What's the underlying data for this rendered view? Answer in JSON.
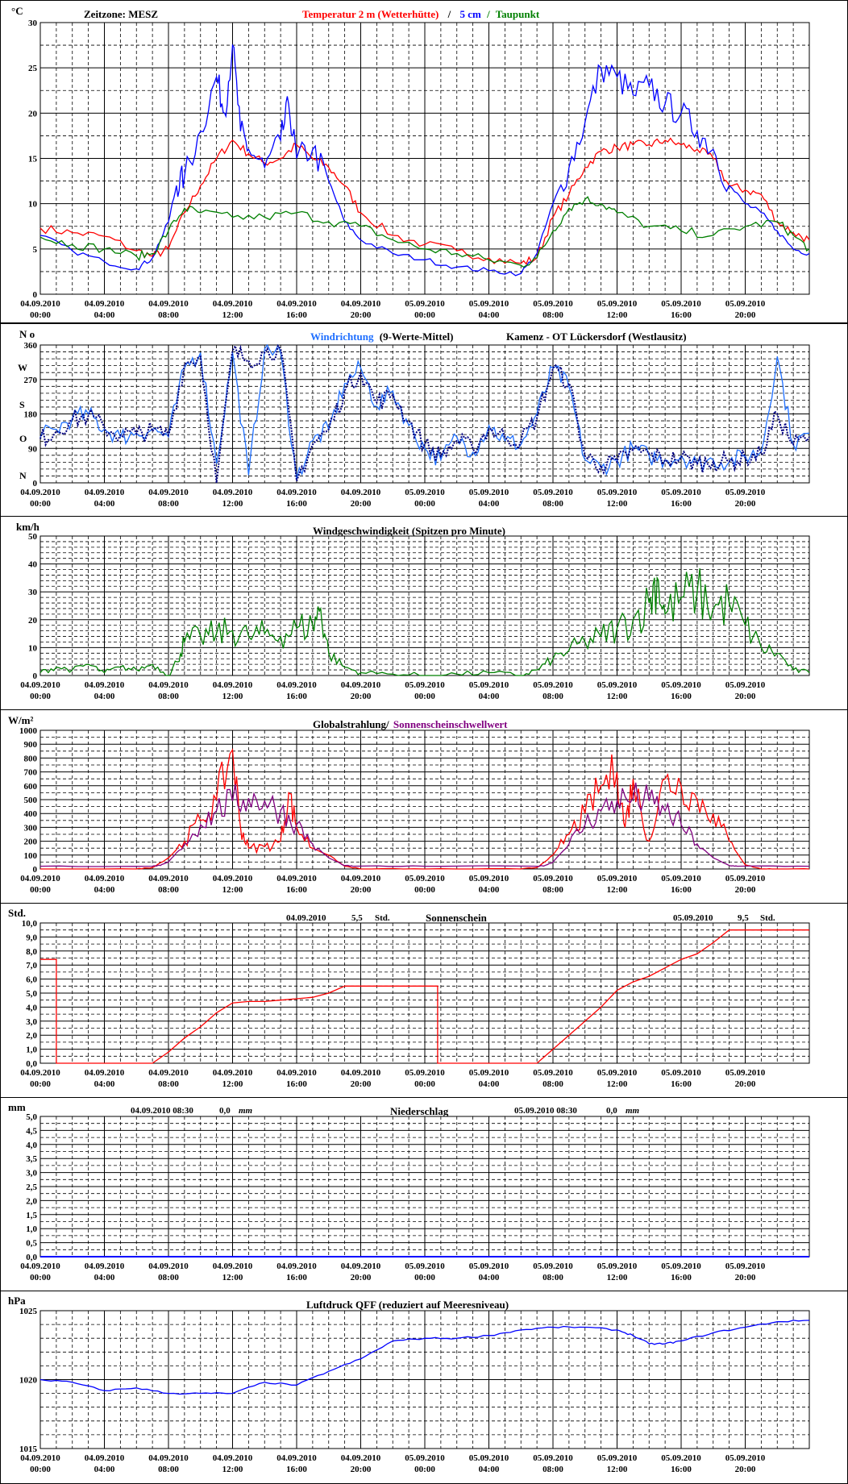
{
  "x_ticks": [
    {
      "date": "04.09.2010",
      "time": "00:00"
    },
    {
      "date": "04.09.2010",
      "time": "04:00"
    },
    {
      "date": "04.09.2010",
      "time": "08:00"
    },
    {
      "date": "04.09.2010",
      "time": "12:00"
    },
    {
      "date": "04.09.2010",
      "time": "16:00"
    },
    {
      "date": "04.09.2010",
      "time": "20:00"
    },
    {
      "date": "05.09.2010",
      "time": "00:00"
    },
    {
      "date": "05.09.2010",
      "time": "04:00"
    },
    {
      "date": "05.09.2010",
      "time": "08:00"
    },
    {
      "date": "05.09.2010",
      "time": "12:00"
    },
    {
      "date": "05.09.2010",
      "time": "16:00"
    },
    {
      "date": "05.09.2010",
      "time": "20:00"
    }
  ],
  "colors": {
    "red": "#ff0000",
    "blue": "#0000ff",
    "green": "#008000",
    "light_blue": "#1f6fff",
    "navy": "#000080",
    "purple": "#800080",
    "black": "#000000"
  },
  "chart_data": [
    {
      "id": "temperature",
      "type": "line",
      "unit": "°C",
      "timezone": "Zeitzone: MESZ",
      "title_parts": [
        "Temperatur 2 m (Wetterhütte)",
        "/",
        "5 cm",
        "/",
        "Taupunkt"
      ],
      "ylim": [
        0,
        30
      ],
      "y_ticks": [
        "0",
        "5",
        "10",
        "15",
        "20",
        "25",
        "30"
      ],
      "series": [
        {
          "name": "Temperatur 2 m (Wetterhütte)",
          "color": "#ff0000",
          "x_hours": [
            0,
            2,
            4,
            6,
            7,
            8,
            9,
            10,
            11,
            12,
            13,
            14,
            15,
            16,
            17,
            18,
            19,
            20,
            22,
            24,
            26,
            28,
            30,
            31,
            32,
            33,
            34,
            35,
            36,
            37,
            38,
            39,
            40,
            41,
            42,
            43,
            44,
            45,
            46,
            47,
            48
          ],
          "values": [
            7.3,
            6.8,
            6.4,
            4.8,
            4.2,
            5,
            9,
            12,
            15,
            17,
            15.5,
            14.5,
            15,
            16.5,
            15,
            14,
            12,
            9,
            6.5,
            5.5,
            4.8,
            4.0,
            3.4,
            4.0,
            8.5,
            11,
            14,
            15.8,
            16.2,
            16.5,
            16.5,
            17,
            16.5,
            16,
            15,
            12,
            11.5,
            11,
            8,
            6.8,
            6
          ]
        },
        {
          "name": "5 cm",
          "color": "#0000ff",
          "x_hours": [
            0,
            2,
            4,
            6,
            7,
            8,
            8.5,
            9,
            10,
            11,
            11.5,
            12,
            12.5,
            13,
            14,
            15,
            15.5,
            16,
            17,
            18,
            19,
            20,
            22,
            24,
            26,
            28,
            30,
            31,
            32,
            33,
            34,
            35,
            36,
            37,
            38,
            39,
            40,
            41,
            42,
            43,
            44,
            45,
            46,
            47,
            48
          ],
          "values": [
            6.5,
            4.8,
            3.6,
            2.8,
            4.0,
            8,
            12,
            13,
            18,
            24,
            20,
            27.5,
            18,
            16,
            14,
            17,
            21,
            15,
            16,
            12.5,
            8,
            6,
            4.5,
            3.8,
            3.0,
            2.6,
            2.3,
            4.5,
            10,
            14,
            19,
            25,
            24,
            22,
            23,
            21,
            20,
            18,
            16,
            12,
            10,
            9,
            7,
            5,
            4.5
          ]
        },
        {
          "name": "Taupunkt",
          "color": "#008000",
          "x_hours": [
            0,
            2,
            4,
            6,
            7,
            8,
            9,
            10,
            12,
            14,
            16,
            18,
            20,
            22,
            24,
            26,
            28,
            30,
            31,
            32,
            33,
            34,
            35,
            36,
            38,
            40,
            42,
            44,
            46,
            47,
            48
          ],
          "values": [
            6.3,
            5.5,
            5,
            4.2,
            4.5,
            7,
            9.5,
            9,
            8.5,
            8.5,
            9,
            8,
            7.5,
            6,
            5,
            4.5,
            3.8,
            3.2,
            4,
            7,
            9.5,
            10.5,
            10,
            9,
            7.5,
            7,
            6.5,
            7.5,
            8,
            6.5,
            5
          ]
        }
      ]
    },
    {
      "id": "wind_direction",
      "type": "line",
      "unit": "N o",
      "title": "Windrichtung",
      "title_suffix": "(9-Werte-Mittel)",
      "station": "Kamenz - OT Lückersdorf (Westlausitz)",
      "ylim": [
        0,
        360
      ],
      "y_ticks": [
        "0",
        "90",
        "180",
        "270",
        "360"
      ],
      "compass": [
        "N",
        "O",
        "S",
        "W"
      ],
      "series": [
        {
          "name": "Windrichtung",
          "color": "#1f6fff",
          "x_hours": [
            0,
            1,
            2,
            3,
            4,
            5,
            6,
            7,
            8,
            9,
            10,
            11,
            12,
            13,
            14,
            15,
            16,
            17,
            18,
            19,
            20,
            21,
            22,
            23,
            24,
            25,
            26,
            27,
            28,
            29,
            30,
            31,
            32,
            33,
            34,
            35,
            36,
            37,
            38,
            39,
            40,
            41,
            42,
            43,
            44,
            45,
            46,
            47,
            48
          ],
          "values": [
            120,
            140,
            170,
            180,
            140,
            120,
            130,
            140,
            120,
            300,
            340,
            50,
            340,
            20,
            350,
            340,
            10,
            110,
            140,
            260,
            300,
            200,
            240,
            150,
            90,
            60,
            120,
            80,
            150,
            110,
            100,
            180,
            300,
            250,
            60,
            40,
            60,
            90,
            70,
            60,
            70,
            50,
            60,
            55,
            70,
            80,
            330,
            100,
            130
          ]
        },
        {
          "name": "9-Werte-Mittel",
          "color": "#000080",
          "x_hours": [
            0,
            1,
            2,
            3,
            4,
            5,
            6,
            7,
            8,
            9,
            10,
            11,
            12,
            13,
            14,
            15,
            16,
            17,
            18,
            19,
            20,
            21,
            22,
            23,
            24,
            25,
            26,
            27,
            28,
            29,
            30,
            31,
            32,
            33,
            34,
            35,
            36,
            37,
            38,
            39,
            40,
            41,
            42,
            43,
            44,
            45,
            46,
            47,
            48
          ],
          "values": [
            115,
            135,
            165,
            175,
            145,
            125,
            128,
            135,
            125,
            310,
            330,
            0,
            345,
            320,
            340,
            350,
            5,
            100,
            140,
            240,
            290,
            210,
            230,
            160,
            100,
            70,
            110,
            90,
            140,
            120,
            110,
            170,
            300,
            260,
            70,
            45,
            55,
            85,
            75,
            60,
            65,
            50,
            55,
            55,
            65,
            75,
            180,
            100,
            120
          ]
        }
      ]
    },
    {
      "id": "wind_speed",
      "type": "line",
      "unit": "km/h",
      "title": "Windgeschwindigkeit (Spitzen pro Minute)",
      "ylim": [
        0,
        50
      ],
      "y_ticks": [
        "0",
        "10",
        "20",
        "30",
        "40",
        "50"
      ],
      "series": [
        {
          "name": "Windgeschwindigkeit",
          "color": "#008000",
          "x_hours": [
            0,
            1,
            2,
            3,
            4,
            5,
            6,
            7,
            8,
            8.5,
            9,
            10,
            11,
            12,
            13,
            14,
            15,
            16,
            17,
            17.5,
            18,
            19,
            20,
            22,
            24,
            26,
            28,
            30,
            31,
            32,
            33,
            34,
            35,
            36,
            37,
            38,
            38.5,
            39,
            40,
            41,
            42,
            43,
            44,
            45,
            46,
            47,
            48
          ],
          "values": [
            1,
            3,
            2,
            4,
            1,
            3,
            2,
            4,
            0,
            5,
            12,
            14,
            15,
            16,
            14,
            15,
            14,
            17,
            18,
            24,
            8,
            3,
            1,
            0.5,
            0,
            0.5,
            1,
            0,
            2,
            6,
            9,
            12,
            14,
            17,
            20,
            26,
            35,
            22,
            28,
            30,
            24,
            26,
            18,
            10,
            8,
            2,
            1
          ]
        }
      ]
    },
    {
      "id": "global_radiation",
      "type": "line",
      "unit": "W/m²",
      "title_parts": [
        "Globalstrahlung/",
        "Sonnenscheinschwellwert"
      ],
      "ylim": [
        0,
        1000
      ],
      "y_ticks": [
        "0",
        "100",
        "200",
        "300",
        "400",
        "500",
        "600",
        "700",
        "800",
        "900",
        "1000"
      ],
      "series": [
        {
          "name": "Globalstrahlung",
          "color": "#ff0000",
          "x_hours": [
            0,
            6,
            7,
            8,
            9,
            10,
            11,
            12,
            12.5,
            13,
            14,
            15,
            15.5,
            16,
            17,
            18,
            19,
            20,
            24,
            30,
            31,
            32,
            33,
            34,
            35,
            36,
            36.5,
            37,
            38,
            39,
            40,
            41,
            42,
            43,
            44,
            45,
            46,
            48
          ],
          "values": [
            0,
            0,
            10,
            80,
            200,
            350,
            500,
            860,
            300,
            150,
            160,
            200,
            550,
            300,
            150,
            100,
            20,
            0,
            0,
            0,
            10,
            100,
            250,
            400,
            600,
            700,
            300,
            650,
            200,
            650,
            600,
            500,
            400,
            200,
            30,
            0,
            0,
            0
          ]
        },
        {
          "name": "Sonnenscheinschwellwert",
          "color": "#800080",
          "x_hours": [
            0,
            7,
            7.5,
            8,
            9,
            10,
            11,
            12,
            13,
            14,
            15,
            16,
            17,
            18,
            19,
            19.5,
            24,
            31,
            31.5,
            32,
            33,
            34,
            35,
            36,
            37,
            38,
            39,
            40,
            41,
            42,
            43,
            43.5,
            48
          ],
          "values": [
            20,
            20,
            25,
            50,
            180,
            320,
            420,
            490,
            510,
            490,
            420,
            320,
            180,
            80,
            25,
            20,
            20,
            20,
            25,
            50,
            180,
            320,
            420,
            490,
            510,
            490,
            420,
            320,
            180,
            80,
            25,
            20,
            20
          ]
        }
      ]
    },
    {
      "id": "sunshine",
      "type": "line",
      "unit": "Std.",
      "title": "Sonnenschein",
      "annotations": [
        {
          "date": "04.09.2010",
          "value": "5,5",
          "unit": "Std."
        },
        {
          "date": "05.09.2010",
          "value": "9,5",
          "unit": "Std."
        }
      ],
      "ylim": [
        0,
        10
      ],
      "y_ticks": [
        "0,0",
        "1,0",
        "2,0",
        "3,0",
        "4,0",
        "5,0",
        "6,0",
        "7,0",
        "8,0",
        "9,0",
        "10,0"
      ],
      "series": [
        {
          "name": "Sonnenschein",
          "color": "#ff0000",
          "x_hours": [
            0,
            1,
            1,
            7,
            8,
            9,
            10,
            11,
            12,
            13,
            14,
            15,
            16,
            17,
            18,
            19,
            24.8,
            24.8,
            31,
            32,
            33,
            34,
            35,
            36,
            37,
            38,
            39,
            40,
            41,
            42,
            43,
            43.1,
            48
          ],
          "values": [
            7.4,
            7.4,
            0,
            0,
            0.8,
            1.8,
            2.6,
            3.6,
            4.3,
            4.4,
            4.4,
            4.5,
            4.6,
            4.7,
            5.0,
            5.5,
            5.5,
            0,
            0,
            1.0,
            2.0,
            3.0,
            4.0,
            5.2,
            5.8,
            6.2,
            6.8,
            7.4,
            7.8,
            8.6,
            9.5,
            9.5,
            9.5
          ]
        }
      ]
    },
    {
      "id": "precipitation",
      "type": "line",
      "unit": "mm",
      "title": "Niederschlag",
      "annotations": [
        {
          "date": "04.09.2010 08:30",
          "value": "0,0",
          "unit": "mm"
        },
        {
          "date": "05.09.2010 08:30",
          "value": "0,0",
          "unit": "mm"
        }
      ],
      "ylim": [
        0,
        5
      ],
      "y_ticks": [
        "0,0",
        "0,5",
        "1,0",
        "1,5",
        "2,0",
        "2,5",
        "3,0",
        "3,5",
        "4,0",
        "4,5",
        "5,0"
      ],
      "series": [
        {
          "name": "Niederschlag",
          "color": "#0000ff",
          "x_hours": [
            0,
            48
          ],
          "values": [
            0,
            0
          ]
        }
      ]
    },
    {
      "id": "pressure",
      "type": "line",
      "unit": "hPa",
      "title": "Luftdruck QFF (reduziert auf Meeresniveau)",
      "ylim": [
        1015,
        1025
      ],
      "y_ticks": [
        "1015",
        "1020",
        "1025"
      ],
      "series": [
        {
          "name": "Luftdruck QFF",
          "color": "#0000ff",
          "x_hours": [
            0,
            2,
            4,
            6,
            8,
            10,
            12,
            14,
            16,
            18,
            20,
            22,
            24,
            26,
            28,
            30,
            32,
            34,
            36,
            37,
            38,
            39,
            40,
            42,
            44,
            46,
            48
          ],
          "values": [
            1020.0,
            1019.8,
            1019.2,
            1019.4,
            1019.0,
            1019.0,
            1019.0,
            1019.8,
            1019.6,
            1020.6,
            1021.5,
            1022.8,
            1023.0,
            1023.0,
            1023.2,
            1023.6,
            1023.8,
            1023.8,
            1023.6,
            1023.2,
            1022.6,
            1022.6,
            1022.8,
            1023.4,
            1023.8,
            1024.2,
            1024.3
          ]
        }
      ]
    }
  ]
}
